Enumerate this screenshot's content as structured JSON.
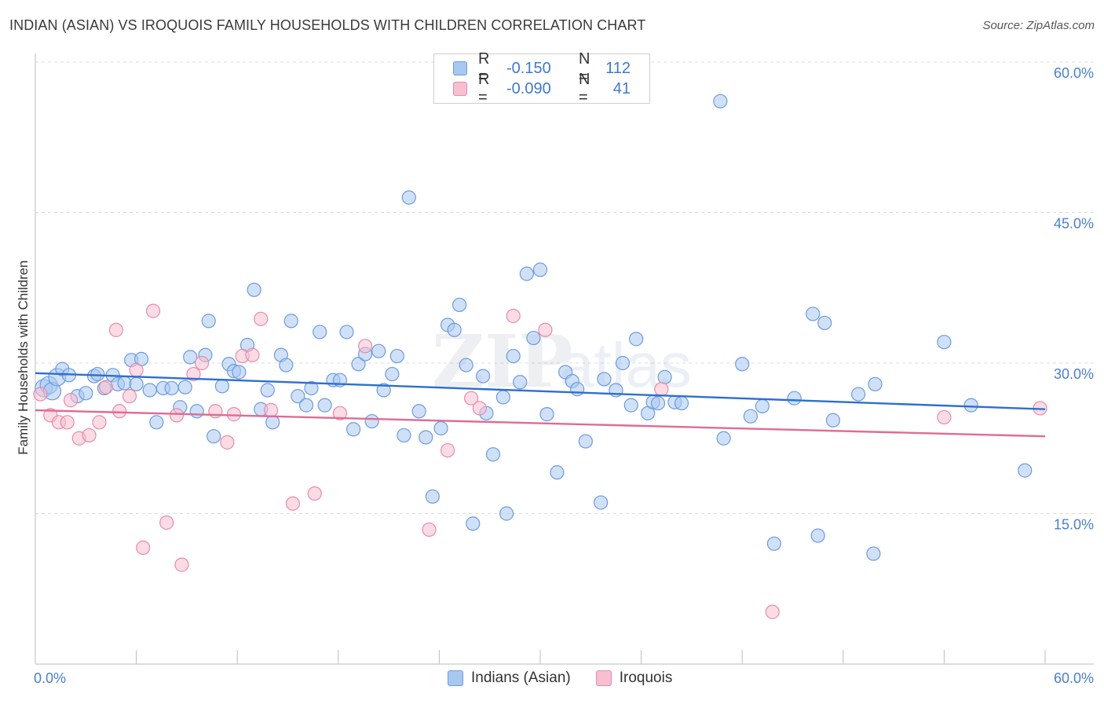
{
  "header": {
    "title": "INDIAN (ASIAN) VS IROQUOIS FAMILY HOUSEHOLDS WITH CHILDREN CORRELATION CHART",
    "source": "Source: ZipAtlas.com"
  },
  "watermark": "ZIPatlas",
  "legend_top": {
    "rows": [
      {
        "r_label": "R =",
        "r_value": "-0.150",
        "n_label": "N =",
        "n_value": "112",
        "color": "#a9c8f0",
        "border": "#6c9be0"
      },
      {
        "r_label": "R =",
        "r_value": "-0.090",
        "n_label": "N =",
        "n_value": "41",
        "color": "#f7bfd0",
        "border": "#e98aaa"
      }
    ]
  },
  "legend_bottom": {
    "items": [
      {
        "label": "Indians (Asian)",
        "color": "#a9c8f0",
        "border": "#6c9be0"
      },
      {
        "label": "Iroquois",
        "color": "#f7bfd0",
        "border": "#e98aaa"
      }
    ]
  },
  "chart_data": {
    "type": "scatter",
    "title": "INDIAN (ASIAN) VS IROQUOIS FAMILY HOUSEHOLDS WITH CHILDREN CORRELATION CHART",
    "xlabel": "",
    "ylabel": "Family Households with Children",
    "xlim": [
      0,
      60
    ],
    "ylim": [
      0,
      60
    ],
    "x_tick_labels": [
      "0.0%",
      "60.0%"
    ],
    "y_ticks": [
      15,
      30,
      45,
      60
    ],
    "y_tick_labels": [
      "15.0%",
      "30.0%",
      "45.0%",
      "60.0%"
    ],
    "grid": true,
    "legend_position": "bottom",
    "series": [
      {
        "name": "Indians (Asian)",
        "color": "#6c9be0",
        "fill": "#a9c8f0",
        "trend": {
          "x": [
            0,
            60
          ],
          "y": [
            29.0,
            25.4
          ]
        },
        "points": [
          [
            0.5,
            27.5
          ],
          [
            0.8,
            27.8
          ],
          [
            1.0,
            27.2
          ],
          [
            1.3,
            28.6
          ],
          [
            1.6,
            29.4
          ],
          [
            2.0,
            28.8
          ],
          [
            2.5,
            26.7
          ],
          [
            3.0,
            27.0
          ],
          [
            3.5,
            28.7
          ],
          [
            3.7,
            28.9
          ],
          [
            4.1,
            27.5
          ],
          [
            4.6,
            28.8
          ],
          [
            4.9,
            27.9
          ],
          [
            5.3,
            28.0
          ],
          [
            5.7,
            30.3
          ],
          [
            6.0,
            27.9
          ],
          [
            6.3,
            30.4
          ],
          [
            6.8,
            27.3
          ],
          [
            7.2,
            24.1
          ],
          [
            7.6,
            27.5
          ],
          [
            8.1,
            27.5
          ],
          [
            8.6,
            25.6
          ],
          [
            8.9,
            27.6
          ],
          [
            9.2,
            30.6
          ],
          [
            9.6,
            25.2
          ],
          [
            10.1,
            30.8
          ],
          [
            10.3,
            34.2
          ],
          [
            10.6,
            22.7
          ],
          [
            11.1,
            27.7
          ],
          [
            11.5,
            29.9
          ],
          [
            11.8,
            29.2
          ],
          [
            12.1,
            29.1
          ],
          [
            12.6,
            31.8
          ],
          [
            13.0,
            37.3
          ],
          [
            13.4,
            25.4
          ],
          [
            13.8,
            27.3
          ],
          [
            14.1,
            24.1
          ],
          [
            14.6,
            30.8
          ],
          [
            14.9,
            29.8
          ],
          [
            15.2,
            34.2
          ],
          [
            15.6,
            26.7
          ],
          [
            16.1,
            25.8
          ],
          [
            16.4,
            27.5
          ],
          [
            16.9,
            33.1
          ],
          [
            17.2,
            25.8
          ],
          [
            17.7,
            28.3
          ],
          [
            18.1,
            28.3
          ],
          [
            18.5,
            33.1
          ],
          [
            18.9,
            23.4
          ],
          [
            19.2,
            29.9
          ],
          [
            19.6,
            30.9
          ],
          [
            20.0,
            24.2
          ],
          [
            20.4,
            31.2
          ],
          [
            20.7,
            27.3
          ],
          [
            21.2,
            28.9
          ],
          [
            21.5,
            30.7
          ],
          [
            21.9,
            22.8
          ],
          [
            22.2,
            46.5
          ],
          [
            22.8,
            25.2
          ],
          [
            23.2,
            22.6
          ],
          [
            23.6,
            16.7
          ],
          [
            24.1,
            23.5
          ],
          [
            24.5,
            33.8
          ],
          [
            24.9,
            33.3
          ],
          [
            25.2,
            35.8
          ],
          [
            25.6,
            29.8
          ],
          [
            26.0,
            14.0
          ],
          [
            26.6,
            28.7
          ],
          [
            26.8,
            25.0
          ],
          [
            27.2,
            20.9
          ],
          [
            27.8,
            26.6
          ],
          [
            28.0,
            15.0
          ],
          [
            28.4,
            30.7
          ],
          [
            28.8,
            28.1
          ],
          [
            29.2,
            38.9
          ],
          [
            29.6,
            32.5
          ],
          [
            30.0,
            39.3
          ],
          [
            30.4,
            24.9
          ],
          [
            31.0,
            19.1
          ],
          [
            31.5,
            29.1
          ],
          [
            31.9,
            28.2
          ],
          [
            32.2,
            27.4
          ],
          [
            32.7,
            22.2
          ],
          [
            33.6,
            16.1
          ],
          [
            33.8,
            28.4
          ],
          [
            34.5,
            27.3
          ],
          [
            34.9,
            30.0
          ],
          [
            35.4,
            25.8
          ],
          [
            35.7,
            32.4
          ],
          [
            36.4,
            25.0
          ],
          [
            36.7,
            26.1
          ],
          [
            37.0,
            26.0
          ],
          [
            37.4,
            28.6
          ],
          [
            38.0,
            26.1
          ],
          [
            38.4,
            26.0
          ],
          [
            40.7,
            56.1
          ],
          [
            40.9,
            22.5
          ],
          [
            42.0,
            29.9
          ],
          [
            42.5,
            24.7
          ],
          [
            43.2,
            25.7
          ],
          [
            43.9,
            12.0
          ],
          [
            45.1,
            26.5
          ],
          [
            46.2,
            34.9
          ],
          [
            46.5,
            12.8
          ],
          [
            46.9,
            34.0
          ],
          [
            47.4,
            24.3
          ],
          [
            48.9,
            26.9
          ],
          [
            49.8,
            11.0
          ],
          [
            49.9,
            27.9
          ],
          [
            54.0,
            32.1
          ],
          [
            55.6,
            25.8
          ],
          [
            58.8,
            19.3
          ]
        ]
      },
      {
        "name": "Iroquois",
        "color": "#e98aaa",
        "fill": "#f7bfd0",
        "trend": {
          "x": [
            0,
            60
          ],
          "y": [
            25.3,
            22.7
          ]
        },
        "points": [
          [
            0.3,
            26.9
          ],
          [
            0.9,
            24.8
          ],
          [
            1.4,
            24.1
          ],
          [
            1.9,
            24.1
          ],
          [
            2.1,
            26.3
          ],
          [
            2.6,
            22.5
          ],
          [
            3.2,
            22.8
          ],
          [
            3.8,
            24.1
          ],
          [
            4.2,
            27.6
          ],
          [
            4.8,
            33.3
          ],
          [
            5.0,
            25.2
          ],
          [
            5.6,
            26.7
          ],
          [
            6.0,
            29.3
          ],
          [
            6.4,
            11.6
          ],
          [
            7.0,
            35.2
          ],
          [
            7.8,
            14.1
          ],
          [
            8.4,
            24.8
          ],
          [
            8.7,
            9.9
          ],
          [
            9.4,
            28.9
          ],
          [
            9.9,
            30.0
          ],
          [
            10.7,
            25.2
          ],
          [
            11.4,
            22.1
          ],
          [
            11.8,
            24.9
          ],
          [
            12.3,
            30.7
          ],
          [
            12.9,
            30.8
          ],
          [
            13.4,
            34.4
          ],
          [
            14.0,
            25.3
          ],
          [
            15.3,
            16.0
          ],
          [
            16.6,
            17.0
          ],
          [
            18.1,
            25.0
          ],
          [
            19.6,
            31.7
          ],
          [
            23.4,
            13.4
          ],
          [
            24.5,
            21.3
          ],
          [
            25.9,
            26.5
          ],
          [
            26.4,
            25.5
          ],
          [
            28.4,
            34.7
          ],
          [
            30.3,
            33.3
          ],
          [
            37.2,
            27.4
          ],
          [
            43.8,
            5.2
          ],
          [
            54.0,
            24.6
          ],
          [
            59.7,
            25.5
          ]
        ]
      }
    ]
  }
}
